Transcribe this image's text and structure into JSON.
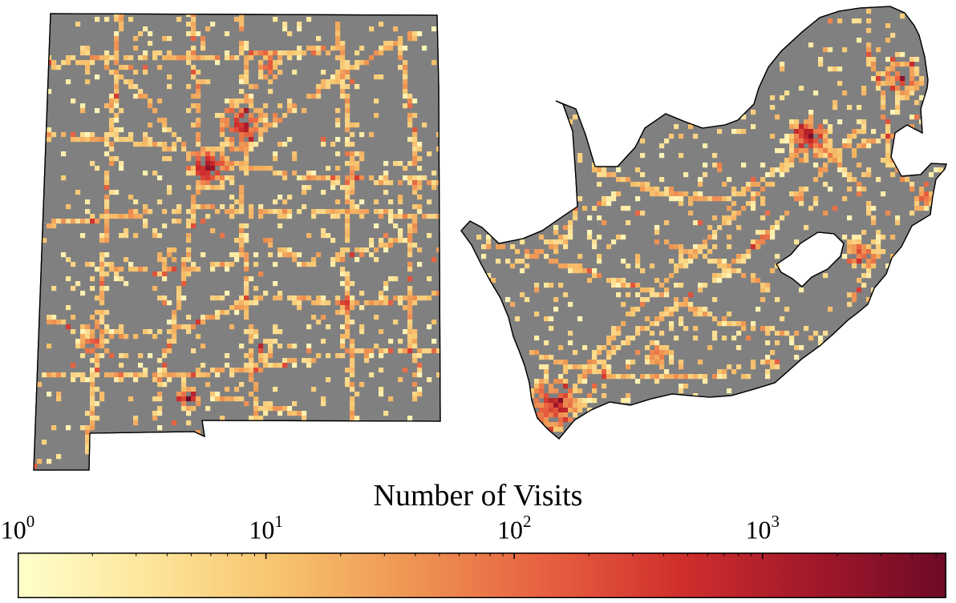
{
  "maps": [
    {
      "name": "state-region",
      "background": "#808080"
    },
    {
      "name": "country-region",
      "background": "#808080"
    }
  ],
  "colorbar": {
    "title": "Number of Visits",
    "scale": "log",
    "range": [
      1,
      5500
    ],
    "major_ticks": [
      {
        "value": 1,
        "base": "10",
        "exp": "0"
      },
      {
        "value": 10,
        "base": "10",
        "exp": "1"
      },
      {
        "value": 100,
        "base": "10",
        "exp": "2"
      },
      {
        "value": 1000,
        "base": "10",
        "exp": "3"
      }
    ],
    "colors": [
      "#ffffcc",
      "#fde59a",
      "#f7c26c",
      "#ee9353",
      "#e75f40",
      "#cf2f2c",
      "#a2182b",
      "#6e0a26"
    ]
  }
}
